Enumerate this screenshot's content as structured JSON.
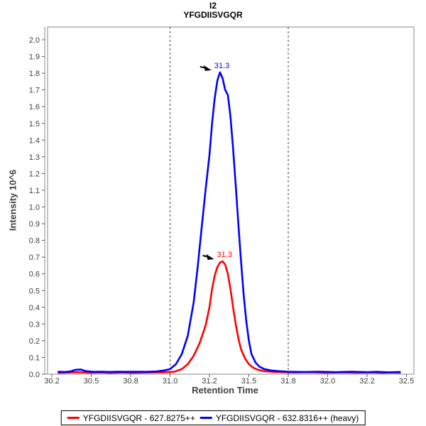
{
  "title": {
    "line1": "I2",
    "line2": "YFGDIISVGQR"
  },
  "colors": {
    "background": "#ffffff",
    "axis_line": "#8a8a8a",
    "tick_mark": "#5a5a5a",
    "axis_text": "#404040",
    "boundary_line": "#404040",
    "annotation_arrow": "#000000",
    "legend_border": "#000000",
    "red_series": "#ff0000",
    "blue_series": "#0000ff"
  },
  "chart_data": {
    "type": "line",
    "title": "I2",
    "subtitle": "YFGDIISVGQR",
    "xlabel": "Retention Time",
    "ylabel": "Intensity 10^6",
    "grid": false,
    "legend_position": "bottom-center",
    "xlim": [
      30.16,
      32.55
    ],
    "ylim": [
      0,
      2.076
    ],
    "x_ticks": [
      30.2,
      30.5,
      30.8,
      31.0,
      31.2,
      31.5,
      31.8,
      32.0,
      32.2,
      32.5
    ],
    "x_tick_labels": [
      "30.2",
      "30.5",
      "30.8",
      "31.0",
      "31.2",
      "31.5",
      "31.8",
      "32.0",
      "32.2",
      "32.5"
    ],
    "y_tick_labels": [
      "0.0",
      "0.1",
      "0.2",
      "0.3",
      "0.4",
      "0.5",
      "0.6",
      "0.7",
      "0.8",
      "0.9",
      "1.0",
      "1.1",
      "1.2",
      "1.3",
      "1.4",
      "1.5",
      "1.6",
      "1.7",
      "1.8",
      "1.9",
      "2.0"
    ],
    "peak_boundaries": [
      31.0,
      31.8
    ],
    "series": [
      {
        "name": "YFGDIISVGQR - 627.8275++",
        "color": "#ff0000",
        "peak_label": "31.3",
        "apex": {
          "time": 31.3,
          "intensity": 0.675
        },
        "points": [
          [
            30.25,
            0.008
          ],
          [
            30.33,
            0.01
          ],
          [
            30.41,
            0.012
          ],
          [
            30.49,
            0.009
          ],
          [
            30.57,
            0.01
          ],
          [
            30.65,
            0.008
          ],
          [
            30.73,
            0.01
          ],
          [
            30.81,
            0.008
          ],
          [
            30.89,
            0.01
          ],
          [
            30.96,
            0.011
          ],
          [
            31.02,
            0.014
          ],
          [
            31.06,
            0.03
          ],
          [
            31.09,
            0.06
          ],
          [
            31.12,
            0.11
          ],
          [
            31.15,
            0.185
          ],
          [
            31.18,
            0.29
          ],
          [
            31.2,
            0.4
          ],
          [
            31.22,
            0.51
          ],
          [
            31.24,
            0.59
          ],
          [
            31.26,
            0.64
          ],
          [
            31.28,
            0.668
          ],
          [
            31.3,
            0.675
          ],
          [
            31.32,
            0.655
          ],
          [
            31.34,
            0.6
          ],
          [
            31.36,
            0.51
          ],
          [
            31.38,
            0.4
          ],
          [
            31.4,
            0.3
          ],
          [
            31.42,
            0.215
          ],
          [
            31.44,
            0.15
          ],
          [
            31.47,
            0.095
          ],
          [
            31.5,
            0.06
          ],
          [
            31.53,
            0.04
          ],
          [
            31.57,
            0.026
          ],
          [
            31.62,
            0.018
          ],
          [
            31.68,
            0.014
          ],
          [
            31.75,
            0.012
          ],
          [
            31.83,
            0.01
          ],
          [
            31.91,
            0.012
          ],
          [
            31.99,
            0.009
          ],
          [
            32.07,
            0.011
          ],
          [
            32.15,
            0.009
          ],
          [
            32.23,
            0.011
          ],
          [
            32.31,
            0.008
          ],
          [
            32.39,
            0.01
          ],
          [
            32.45,
            0.009
          ]
        ]
      },
      {
        "name": "YFGDIISVGQR - 632.8316++ (heavy)",
        "color": "#0000ff",
        "peak_label": "31.3",
        "apex": {
          "time": 31.28,
          "intensity": 1.805
        },
        "points": [
          [
            30.25,
            0.015
          ],
          [
            30.3,
            0.013
          ],
          [
            30.34,
            0.016
          ],
          [
            30.38,
            0.026
          ],
          [
            30.42,
            0.028
          ],
          [
            30.46,
            0.018
          ],
          [
            30.52,
            0.014
          ],
          [
            30.58,
            0.015
          ],
          [
            30.64,
            0.013
          ],
          [
            30.7,
            0.015
          ],
          [
            30.76,
            0.014
          ],
          [
            30.82,
            0.015
          ],
          [
            30.88,
            0.014
          ],
          [
            30.93,
            0.016
          ],
          [
            30.97,
            0.022
          ],
          [
            31.0,
            0.03
          ],
          [
            31.03,
            0.06
          ],
          [
            31.06,
            0.12
          ],
          [
            31.09,
            0.23
          ],
          [
            31.12,
            0.43
          ],
          [
            31.14,
            0.64
          ],
          [
            31.16,
            0.87
          ],
          [
            31.18,
            1.1
          ],
          [
            31.2,
            1.31
          ],
          [
            31.22,
            1.5
          ],
          [
            31.24,
            1.65
          ],
          [
            31.26,
            1.755
          ],
          [
            31.28,
            1.805
          ],
          [
            31.3,
            1.77
          ],
          [
            31.32,
            1.7
          ],
          [
            31.34,
            1.67
          ],
          [
            31.36,
            1.54
          ],
          [
            31.38,
            1.35
          ],
          [
            31.4,
            1.13
          ],
          [
            31.42,
            0.9
          ],
          [
            31.44,
            0.68
          ],
          [
            31.46,
            0.48
          ],
          [
            31.48,
            0.32
          ],
          [
            31.5,
            0.2
          ],
          [
            31.52,
            0.12
          ],
          [
            31.55,
            0.07
          ],
          [
            31.58,
            0.045
          ],
          [
            31.62,
            0.03
          ],
          [
            31.67,
            0.022
          ],
          [
            31.73,
            0.018
          ],
          [
            31.8,
            0.015
          ],
          [
            31.88,
            0.013
          ],
          [
            31.96,
            0.015
          ],
          [
            32.04,
            0.012
          ],
          [
            32.12,
            0.015
          ],
          [
            32.2,
            0.012
          ],
          [
            32.28,
            0.014
          ],
          [
            32.36,
            0.011
          ],
          [
            32.45,
            0.013
          ]
        ]
      }
    ]
  }
}
